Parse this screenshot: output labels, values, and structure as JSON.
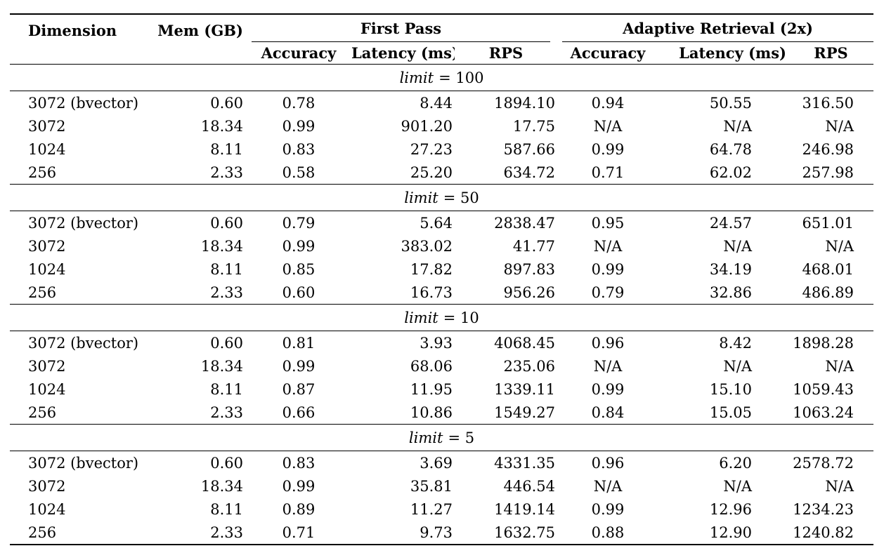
{
  "colors": {
    "text": "#000000",
    "background": "#ffffff",
    "rule": "#000000"
  },
  "table": {
    "corner_headers": {
      "dimension": "Dimension",
      "mem": "Mem (GB)"
    },
    "group_headers": [
      "First Pass",
      "Adaptive Retrieval (2x)"
    ],
    "sub_headers": [
      "Accuracy",
      "Latency (ms)",
      "RPS",
      "Accuracy",
      "Latency (ms)",
      "RPS"
    ],
    "sections": [
      {
        "title_var": "limit",
        "title_rest": "= 100",
        "rows": [
          [
            "3072 (bvector)",
            "0.60",
            "0.78",
            "8.44",
            "1894.10",
            "0.94",
            "50.55",
            "316.50"
          ],
          [
            "3072",
            "18.34",
            "0.99",
            "901.20",
            "17.75",
            "N/A",
            "N/A",
            "N/A"
          ],
          [
            "1024",
            "8.11",
            "0.83",
            "27.23",
            "587.66",
            "0.99",
            "64.78",
            "246.98"
          ],
          [
            "256",
            "2.33",
            "0.58",
            "25.20",
            "634.72",
            "0.71",
            "62.02",
            "257.98"
          ]
        ]
      },
      {
        "title_var": "limit",
        "title_rest": "= 50",
        "rows": [
          [
            "3072 (bvector)",
            "0.60",
            "0.79",
            "5.64",
            "2838.47",
            "0.95",
            "24.57",
            "651.01"
          ],
          [
            "3072",
            "18.34",
            "0.99",
            "383.02",
            "41.77",
            "N/A",
            "N/A",
            "N/A"
          ],
          [
            "1024",
            "8.11",
            "0.85",
            "17.82",
            "897.83",
            "0.99",
            "34.19",
            "468.01"
          ],
          [
            "256",
            "2.33",
            "0.60",
            "16.73",
            "956.26",
            "0.79",
            "32.86",
            "486.89"
          ]
        ]
      },
      {
        "title_var": "limit",
        "title_rest": "= 10",
        "rows": [
          [
            "3072 (bvector)",
            "0.60",
            "0.81",
            "3.93",
            "4068.45",
            "0.96",
            "8.42",
            "1898.28"
          ],
          [
            "3072",
            "18.34",
            "0.99",
            "68.06",
            "235.06",
            "N/A",
            "N/A",
            "N/A"
          ],
          [
            "1024",
            "8.11",
            "0.87",
            "11.95",
            "1339.11",
            "0.99",
            "15.10",
            "1059.43"
          ],
          [
            "256",
            "2.33",
            "0.66",
            "10.86",
            "1549.27",
            "0.84",
            "15.05",
            "1063.24"
          ]
        ]
      },
      {
        "title_var": "limit",
        "title_rest": "= 5",
        "rows": [
          [
            "3072 (bvector)",
            "0.60",
            "0.83",
            "3.69",
            "4331.35",
            "0.96",
            "6.20",
            "2578.72"
          ],
          [
            "3072",
            "18.34",
            "0.99",
            "35.81",
            "446.54",
            "N/A",
            "N/A",
            "N/A"
          ],
          [
            "1024",
            "8.11",
            "0.89",
            "11.27",
            "1419.14",
            "0.99",
            "12.96",
            "1234.23"
          ],
          [
            "256",
            "2.33",
            "0.71",
            "9.73",
            "1632.75",
            "0.88",
            "12.90",
            "1240.82"
          ]
        ]
      }
    ]
  },
  "chart_data": {
    "type": "table",
    "title": "",
    "columns": [
      "Dimension",
      "Mem (GB)",
      "First Pass Accuracy",
      "First Pass Latency (ms)",
      "First Pass RPS",
      "Adaptive Retrieval (2x) Accuracy",
      "Adaptive Retrieval (2x) Latency (ms)",
      "Adaptive Retrieval (2x) RPS"
    ],
    "groups": [
      "limit = 100",
      "limit = 50",
      "limit = 10",
      "limit = 5"
    ]
  }
}
